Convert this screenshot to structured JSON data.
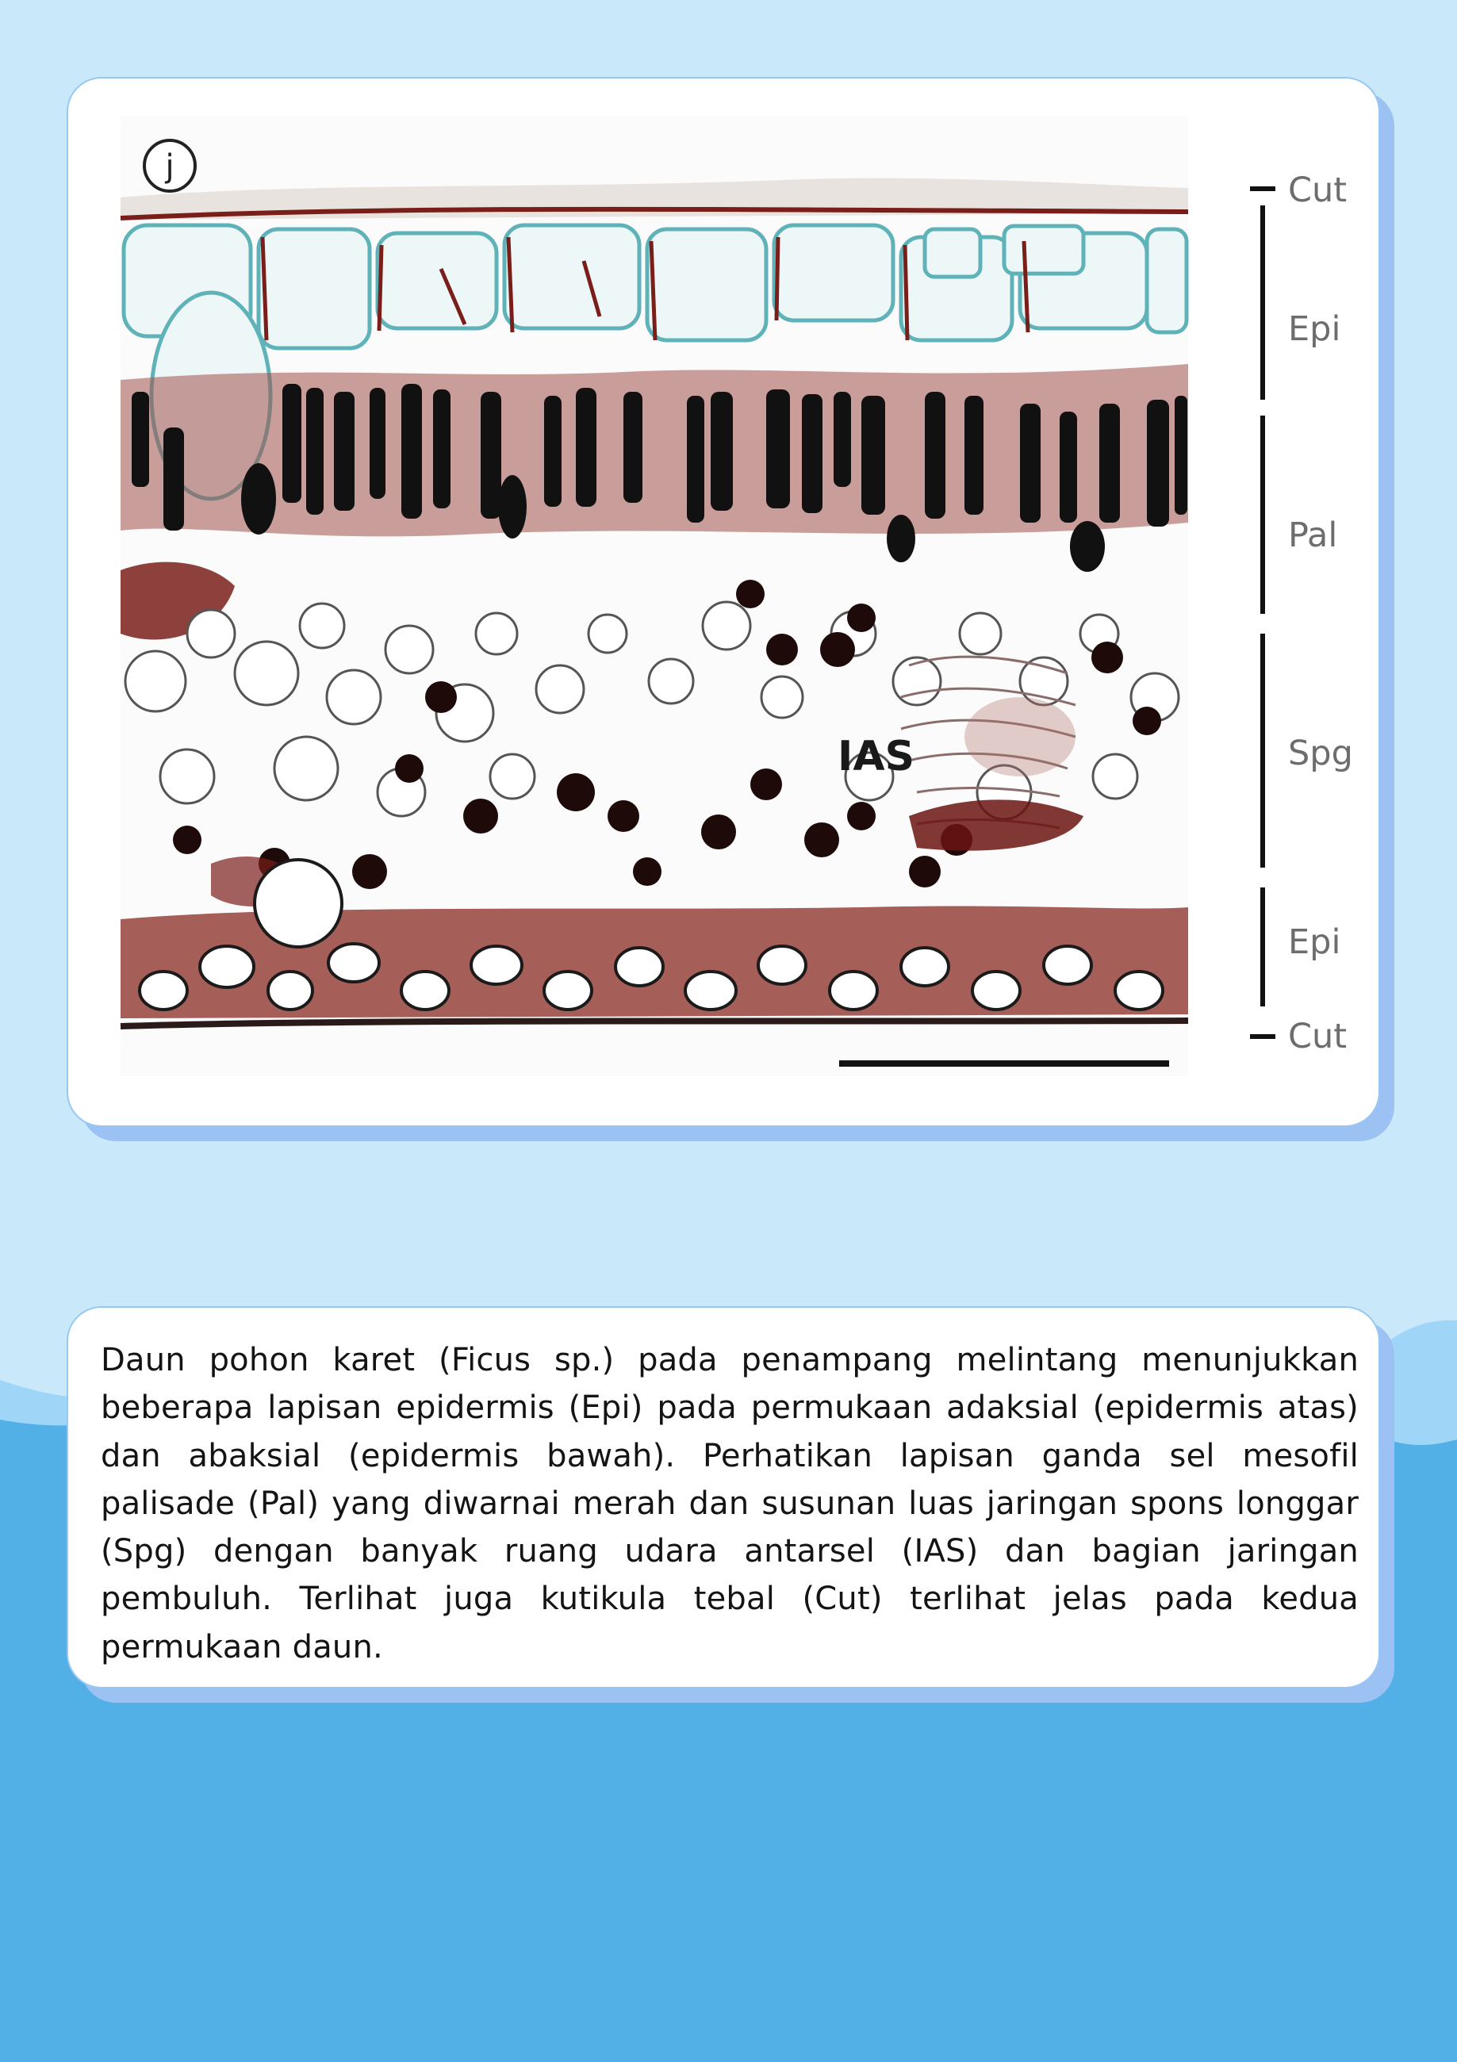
{
  "figure": {
    "panel_label": "j",
    "inner_label": "IAS",
    "layer_labels": [
      "Cut",
      "Epi",
      "Pal",
      "Spg",
      "Epi",
      "Cut"
    ]
  },
  "caption": "Daun pohon karet (Ficus sp.) pada penampang melintang menunjukkan beberapa lapisan epidermis (Epi) pada permukaan adaksial (epidermis atas) dan abaksial (epidermis bawah). Perhatikan lapisan ganda sel mesofil palisade (Pal) yang diwarnai merah dan susunan luas jaringan spons longgar (Spg) dengan banyak ruang udara antarsel (IAS) dan bagian jaringan pembuluh. Terlihat juga kutikula tebal (Cut) terlihat jelas pada kedua permukaan daun.",
  "colors": {
    "background_light": "#c9e9fb",
    "background_wave": "#52b0e6",
    "card": "#ffffff",
    "card_shadow": "#9cc2f3",
    "stain_red": "#7a1e1a",
    "stain_teal": "#5fb3b8"
  }
}
